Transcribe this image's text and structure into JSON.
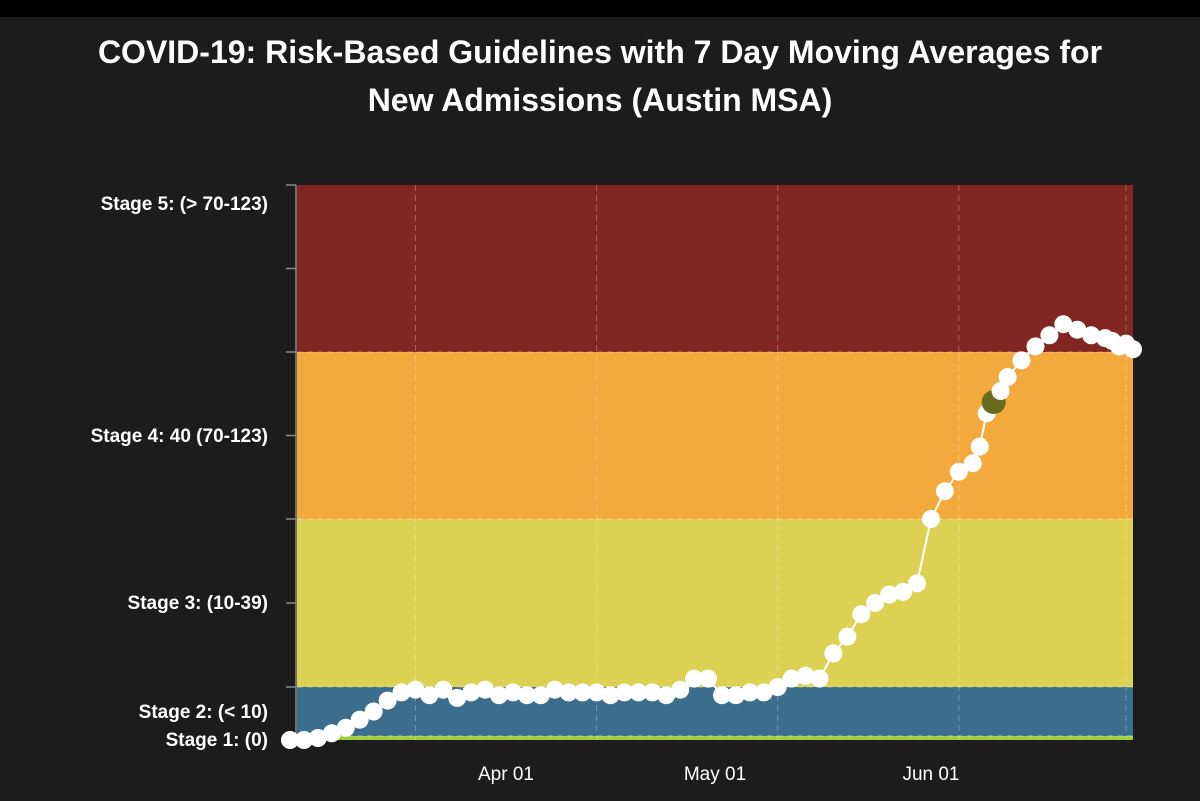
{
  "chart_data": {
    "type": "line",
    "title_line1": "COVID-19: Risk-Based Guidelines with 7 Day Moving Averages for",
    "title_line2": "New Admissions (Austin MSA)",
    "xlabel": "",
    "ylabel": "",
    "x_ticks": [
      "Apr 01",
      "May 01",
      "Jun 01"
    ],
    "y_ticks": [
      "Stage 5: (> 70-123)",
      "Stage 4: 40 (70-123)",
      "Stage 3: (10-39)",
      "Stage 2: (< 10)",
      "Stage 1: (0)"
    ],
    "bands": [
      {
        "name": "Stage 1",
        "from": 0,
        "to": 1,
        "color": "#9fd03c"
      },
      {
        "name": "Stage 2",
        "from": 1,
        "to": 10,
        "color": "#3a6e8c"
      },
      {
        "name": "Stage 3",
        "from": 10,
        "to": 40,
        "color": "#ddd154"
      },
      {
        "name": "Stage 4",
        "from": 40,
        "to": 70,
        "color": "#f3a93c"
      },
      {
        "name": "Stage 5",
        "from": 70,
        "to": 100,
        "color": "#812620"
      }
    ],
    "ylim": [
      0,
      100
    ],
    "xlim_day_of_year": [
      61,
      181
    ],
    "series": [
      {
        "color": "#ffffff",
        "highlight_color": "#6b6b1e",
        "highlight_date": "Jun 10",
        "dates": [
          "Mar 01",
          "Mar 03",
          "Mar 05",
          "Mar 07",
          "Mar 09",
          "Mar 11",
          "Mar 13",
          "Mar 15",
          "Mar 17",
          "Mar 19",
          "Mar 21",
          "Mar 23",
          "Mar 25",
          "Mar 27",
          "Mar 29",
          "Mar 31",
          "Apr 02",
          "Apr 04",
          "Apr 06",
          "Apr 08",
          "Apr 10",
          "Apr 12",
          "Apr 14",
          "Apr 16",
          "Apr 18",
          "Apr 20",
          "Apr 22",
          "Apr 24",
          "Apr 26",
          "Apr 28",
          "Apr 30",
          "May 02",
          "May 04",
          "May 06",
          "May 08",
          "May 10",
          "May 12",
          "May 14",
          "May 16",
          "May 18",
          "May 20",
          "May 22",
          "May 24",
          "May 26",
          "May 28",
          "May 30",
          "Jun 01",
          "Jun 03",
          "Jun 05",
          "Jun 07",
          "Jun 08",
          "Jun 09",
          "Jun 10",
          "Jun 11",
          "Jun 12",
          "Jun 14",
          "Jun 16",
          "Jun 18",
          "Jun 20",
          "Jun 22",
          "Jun 24",
          "Jun 26",
          "Jun 27",
          "Jun 28",
          "Jun 29",
          "Jun 30"
        ],
        "values": [
          0,
          0,
          0.5,
          1.5,
          2.5,
          4,
          5.5,
          7.5,
          9,
          9.5,
          8.5,
          9.5,
          8,
          9,
          9.5,
          8.5,
          9,
          8.5,
          8.5,
          9.5,
          9,
          9,
          9,
          8.5,
          9,
          9,
          9,
          8.5,
          9.5,
          11.5,
          11.5,
          8.5,
          8.5,
          9,
          9,
          10,
          11.5,
          12,
          11.5,
          16,
          19,
          23,
          25,
          26.5,
          27,
          28.5,
          40,
          45,
          48.5,
          50,
          53,
          59,
          61,
          63,
          65.5,
          68.5,
          71,
          73,
          75,
          74,
          73,
          72.5,
          72,
          71,
          71.5,
          70.5
        ]
      }
    ]
  }
}
